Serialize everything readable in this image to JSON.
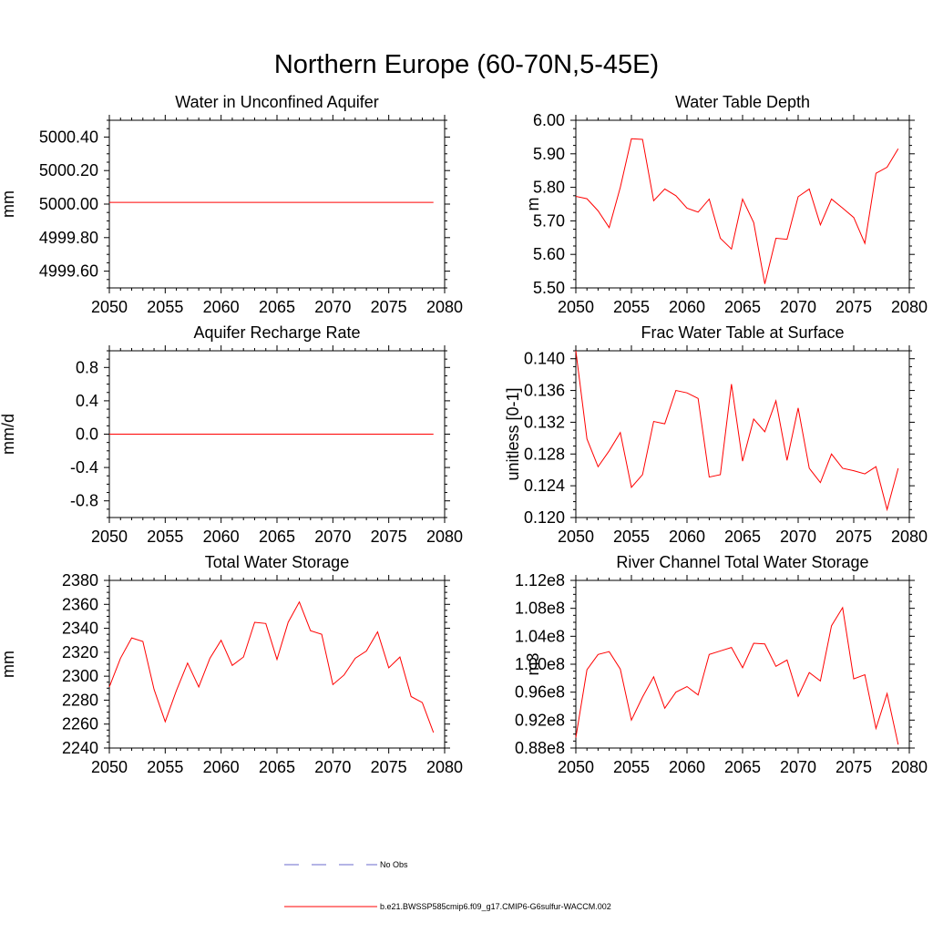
{
  "title": "Northern Europe (60-70N,5-45E)",
  "colors": {
    "model_line": "#ff0000",
    "obs_line": "#6a6acd",
    "axis": "#000000"
  },
  "legend": {
    "obs_label": "No Obs",
    "model_label": "b.e21.BWSSP585cmip6.f09_g17.CMIP6-G6sulfur-WACCM.002"
  },
  "chart_data": [
    {
      "type": "line",
      "title": "Water in Unconfined Aquifer",
      "ylabel": "mm",
      "xlim": [
        2050,
        2080
      ],
      "ylim": [
        4999.5,
        5000.5
      ],
      "xticks": [
        2050,
        2055,
        2060,
        2065,
        2070,
        2075,
        2080
      ],
      "yticks": [
        4999.6,
        4999.8,
        5000.0,
        5000.2,
        5000.4
      ],
      "ytick_labels": [
        "4999.60",
        "4999.80",
        "5000.00",
        "5000.20",
        "5000.40"
      ],
      "x_start": 2050,
      "values": [
        5000.01,
        5000.01,
        5000.01,
        5000.01,
        5000.01,
        5000.01,
        5000.01,
        5000.01,
        5000.01,
        5000.01,
        5000.01,
        5000.01,
        5000.01,
        5000.01,
        5000.01,
        5000.01,
        5000.01,
        5000.01,
        5000.01,
        5000.01,
        5000.01,
        5000.01,
        5000.01,
        5000.01,
        5000.01,
        5000.01,
        5000.01,
        5000.01,
        5000.01,
        5000.01
      ]
    },
    {
      "type": "line",
      "title": "Water Table Depth",
      "ylabel": "m",
      "xlim": [
        2050,
        2080
      ],
      "ylim": [
        5.5,
        6.0
      ],
      "xticks": [
        2050,
        2055,
        2060,
        2065,
        2070,
        2075,
        2080
      ],
      "yticks": [
        5.5,
        5.6,
        5.7,
        5.8,
        5.9,
        6.0
      ],
      "ytick_labels": [
        "5.50",
        "5.60",
        "5.70",
        "5.80",
        "5.90",
        "6.00"
      ],
      "x_start": 2050,
      "values": [
        5.773,
        5.766,
        5.73,
        5.68,
        5.8,
        5.945,
        5.943,
        5.76,
        5.795,
        5.775,
        5.738,
        5.726,
        5.765,
        5.648,
        5.616,
        5.765,
        5.695,
        5.512,
        5.648,
        5.645,
        5.772,
        5.795,
        5.688,
        5.765,
        5.738,
        5.71,
        5.633,
        5.842,
        5.86,
        5.915
      ]
    },
    {
      "type": "line",
      "title": "Aquifer Recharge Rate",
      "ylabel": "mm/d",
      "xlim": [
        2050,
        2080
      ],
      "ylim": [
        -1.0,
        1.0
      ],
      "xticks": [
        2050,
        2055,
        2060,
        2065,
        2070,
        2075,
        2080
      ],
      "yticks": [
        -0.8,
        -0.4,
        0.0,
        0.4,
        0.8
      ],
      "ytick_labels": [
        "-0.8",
        "-0.4",
        "0.0",
        "0.4",
        "0.8"
      ],
      "x_start": 2050,
      "values": [
        0,
        0,
        0,
        0,
        0,
        0,
        0,
        0,
        0,
        0,
        0,
        0,
        0,
        0,
        0,
        0,
        0,
        0,
        0,
        0,
        0,
        0,
        0,
        0,
        0,
        0,
        0,
        0,
        0,
        0
      ]
    },
    {
      "type": "line",
      "title": "Frac Water Table at Surface",
      "ylabel": "unitless [0-1]",
      "xlim": [
        2050,
        2080
      ],
      "ylim": [
        0.12,
        0.141
      ],
      "xticks": [
        2050,
        2055,
        2060,
        2065,
        2070,
        2075,
        2080
      ],
      "yticks": [
        0.12,
        0.124,
        0.128,
        0.132,
        0.136,
        0.14
      ],
      "ytick_labels": [
        "0.120",
        "0.124",
        "0.128",
        "0.132",
        "0.136",
        "0.140"
      ],
      "x_start": 2050,
      "values": [
        0.141,
        0.1299,
        0.1264,
        0.1284,
        0.1307,
        0.1238,
        0.1254,
        0.1321,
        0.1318,
        0.136,
        0.1357,
        0.135,
        0.1251,
        0.1254,
        0.1368,
        0.1271,
        0.1324,
        0.1308,
        0.1347,
        0.1272,
        0.1338,
        0.1262,
        0.1244,
        0.128,
        0.1262,
        0.1259,
        0.1255,
        0.1264,
        0.121,
        0.1262
      ]
    },
    {
      "type": "line",
      "title": "Total Water Storage",
      "ylabel": "mm",
      "xlim": [
        2050,
        2080
      ],
      "ylim": [
        2240,
        2380
      ],
      "xticks": [
        2050,
        2055,
        2060,
        2065,
        2070,
        2075,
        2080
      ],
      "yticks": [
        2240,
        2260,
        2280,
        2300,
        2320,
        2340,
        2360,
        2380
      ],
      "ytick_labels": [
        "2240",
        "2260",
        "2280",
        "2300",
        "2320",
        "2340",
        "2360",
        "2380"
      ],
      "x_start": 2050,
      "values": [
        2291,
        2315,
        2332,
        2329,
        2289,
        2262,
        2288,
        2311,
        2291,
        2315,
        2330,
        2309,
        2316,
        2345,
        2344,
        2314,
        2345,
        2362,
        2338,
        2335,
        2293,
        2301,
        2315,
        2321,
        2337,
        2307,
        2316,
        2283,
        2278,
        2253
      ]
    },
    {
      "type": "line",
      "title": "River Channel Total Water Storage",
      "ylabel": "m3",
      "xlim": [
        2050,
        2080
      ],
      "ylim": [
        0.88,
        1.12
      ],
      "xticks": [
        2050,
        2055,
        2060,
        2065,
        2070,
        2075,
        2080
      ],
      "yticks": [
        0.88,
        0.92,
        0.96,
        1.0,
        1.04,
        1.08,
        1.12
      ],
      "ytick_labels": [
        "0.88e8",
        "0.92e8",
        "0.96e8",
        "1.00e8",
        "1.04e8",
        "1.08e8",
        "1.12e8"
      ],
      "x_start": 2050,
      "values": [
        0.895,
        0.992,
        1.014,
        1.018,
        0.993,
        0.92,
        0.953,
        0.982,
        0.937,
        0.96,
        0.968,
        0.956,
        1.014,
        1.019,
        1.024,
        0.995,
        1.03,
        1.029,
        0.997,
        1.006,
        0.954,
        0.988,
        0.976,
        1.055,
        1.081,
        0.979,
        0.985,
        0.908,
        0.958,
        0.885
      ]
    }
  ]
}
